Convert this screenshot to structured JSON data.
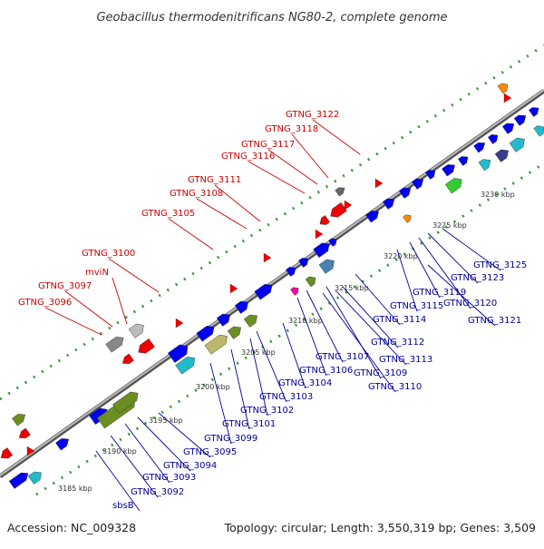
{
  "title": "Geobacillus thermodenitrificans NG80-2, complete genome",
  "footer": {
    "accession": "Accession: NC_009328",
    "summary": "Topology: circular; Length: 3,550,319 bp; Genes: 3,509"
  },
  "colors": {
    "top_strand_label": "#cc0000",
    "bottom_strand_label": "#000099",
    "backbone": "#999999",
    "dotted_track": "#339933",
    "gene_forward": "#0000ee",
    "gene_reverse_top": "#ee0000"
  },
  "kbp_ticks": [
    "3185 kbp",
    "3190 kbp",
    "3195 kbp",
    "3200 kbp",
    "3205 kbp",
    "3210 kbp",
    "3215 kbp",
    "3220 kbp",
    "3225 kbp",
    "3230 kbp"
  ],
  "top_labels": [
    "GTNG_3122",
    "GTNG_3118",
    "GTNG_3117",
    "GTNG_3116",
    "GTNG_3111",
    "GTNG_3108",
    "GTNG_3105",
    "GTNG_3100",
    "mviN",
    "GTNG_3097",
    "GTNG_3096"
  ],
  "bottom_labels": [
    "GTNG_3125",
    "GTNG_3123",
    "GTNG_3119",
    "GTNG_3120",
    "GTNG_3115",
    "GTNG_3121",
    "GTNG_3114",
    "GTNG_3112",
    "GTNG_3113",
    "GTNG_3107",
    "GTNG_3109",
    "GTNG_3106",
    "GTNG_3110",
    "GTNG_3104",
    "GTNG_3103",
    "GTNG_3102",
    "GTNG_3101",
    "GTNG_3099",
    "GTNG_3095",
    "GTNG_3094",
    "GTNG_3093",
    "GTNG_3092",
    "sbsB"
  ]
}
